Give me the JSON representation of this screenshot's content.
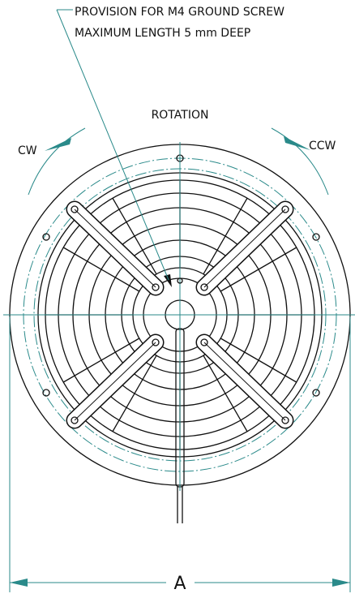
{
  "callout": {
    "line1": "PROVISION FOR M4 GROUND SCREW",
    "line2": "MAXIMUM LENGTH 5 mm DEEP"
  },
  "rotation": {
    "label": "ROTATION",
    "cw": "CW",
    "ccw": "CCW"
  },
  "dimension": {
    "label": "A"
  }
}
